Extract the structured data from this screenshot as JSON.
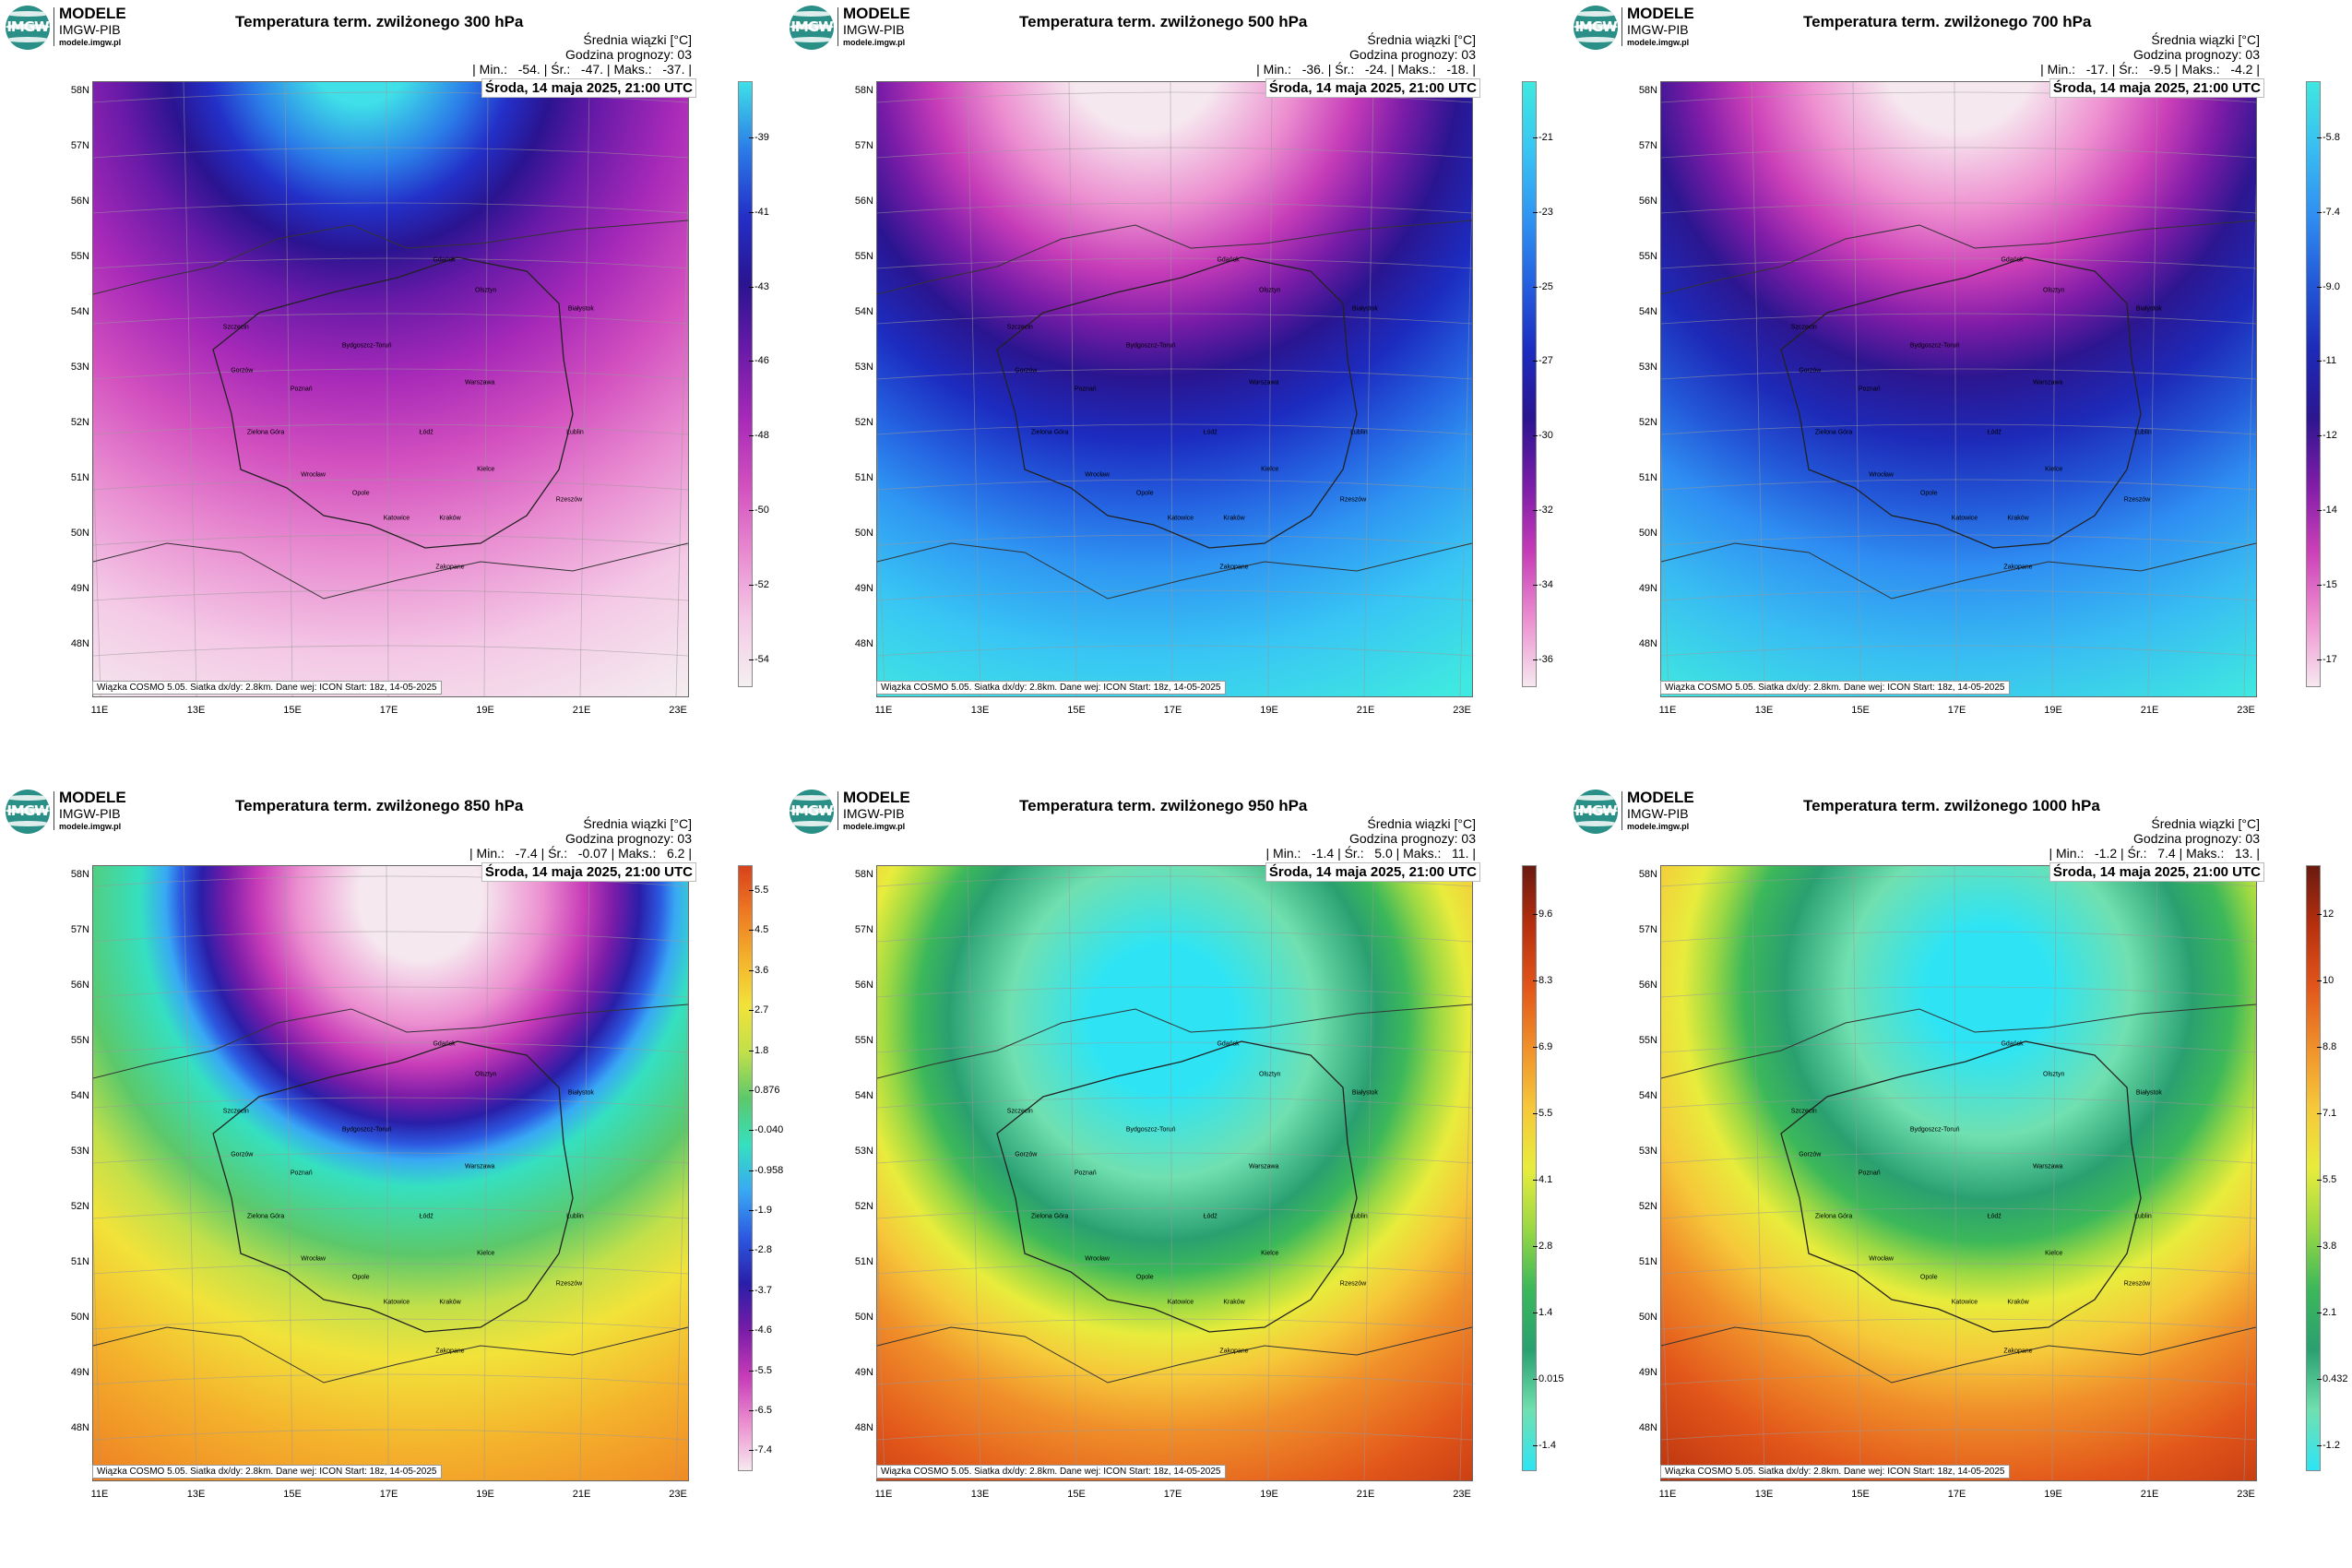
{
  "brand": {
    "name": "MODELE",
    "org": "IMGW-PIB",
    "url": "modele.imgw.pl",
    "logo_text": "IMGW"
  },
  "common": {
    "subtitle": "Średnia wiązki [°C]",
    "forecast_hour": "Godzina prognozy: 03",
    "valid": "Środa, 14 maja 2025, 21:00 UTC",
    "footnote": "Wiązka COSMO 5.05. Siatka dx/dy: 2.8km. Dane wej: ICON Start: 18z, 14-05-2025",
    "lat_labels": [
      "58N",
      "57N",
      "56N",
      "55N",
      "54N",
      "53N",
      "52N",
      "51N",
      "50N",
      "49N",
      "48N"
    ],
    "lon_labels": [
      "11E",
      "13E",
      "15E",
      "17E",
      "19E",
      "21E",
      "23E"
    ],
    "cities": [
      "Gdańsk",
      "Olsztyn",
      "Szczecin",
      "Bydgoszcz-Toruń",
      "Białystok",
      "Gorzów",
      "Poznań",
      "Warszawa",
      "Zielona Góra",
      "Łódź",
      "Lublin",
      "Wrocław",
      "Kielce",
      "Opole",
      "Katowice",
      "Kraków",
      "Rzeszów",
      "Zakopane"
    ]
  },
  "panels": [
    {
      "title": "Temperatura term. zwilżonego 300 hPa",
      "minmax": "| Min.:   -54. | Śr.:   -47. | Maks.:   -37. |",
      "scale": [
        "-39",
        "-41",
        "-43",
        "-46",
        "-48",
        "-50",
        "-52",
        "-54"
      ],
      "colors": [
        "#3fe0e8",
        "#2b7ce8",
        "#2330c8",
        "#2a1490",
        "#6a1aa8",
        "#a629b8",
        "#d24fbf",
        "#e88ad0",
        "#f4c9e6",
        "#f4f0f0"
      ]
    },
    {
      "title": "Temperatura term. zwilżonego 500 hPa",
      "minmax": "| Min.:   -36. | Śr.:   -24. | Maks.:   -18. |",
      "scale": [
        "-21",
        "-23",
        "-25",
        "-27",
        "-30",
        "-32",
        "-34",
        "-36"
      ],
      "colors": [
        "#3fe8e0",
        "#38c6f4",
        "#2f95f2",
        "#2460e0",
        "#1c2cc0",
        "#2a1590",
        "#7a1ca8",
        "#c63cb8",
        "#ec8fd0",
        "#f6e8ef"
      ]
    },
    {
      "title": "Temperatura term. zwilżonego 700 hPa",
      "minmax": "| Min.:   -17. | Śr.:   -9.5 | Maks.:   -4.2 |",
      "scale": [
        "-5.8",
        "-7.4",
        "-9.0",
        "-11",
        "-12",
        "-14",
        "-15",
        "-17"
      ],
      "colors": [
        "#3fe8e0",
        "#38bdf2",
        "#2f8ef2",
        "#2358d8",
        "#1d2ab8",
        "#2c1690",
        "#801ca8",
        "#cc40b8",
        "#ee90d0",
        "#f6e8ef"
      ]
    },
    {
      "title": "Temperatura term. zwilżonego 850 hPa",
      "minmax": "| Min.:   -7.4 | Śr.:   -0.07 | Maks.:   6.2 |",
      "scale": [
        "5.5",
        "4.5",
        "3.6",
        "2.7",
        "1.8",
        "0.876",
        "-0.040",
        "-0.958",
        "-1.9",
        "-2.8",
        "-3.7",
        "-4.6",
        "-5.5",
        "-6.5",
        "-7.4"
      ],
      "colors": [
        "#d8421c",
        "#ee7a22",
        "#f4b22c",
        "#f2e23a",
        "#c2e04a",
        "#5cc86a",
        "#35e0c0",
        "#38a8f4",
        "#2c58e0",
        "#2a1ea8",
        "#7a1ca8",
        "#c83cb8",
        "#ec90d0",
        "#f6e8ef"
      ]
    },
    {
      "title": "Temperatura term. zwilżonego 950 hPa",
      "minmax": "| Min.:   -1.4 | Śr.:   5.0 | Maks.:   11. |",
      "scale": [
        "9.6",
        "8.3",
        "6.9",
        "5.5",
        "4.1",
        "2.8",
        "1.4",
        "0.015",
        "-1.4"
      ],
      "colors": [
        "#6a1a10",
        "#b8300e",
        "#e2561a",
        "#f0902a",
        "#f6c83a",
        "#e8ec3c",
        "#9ad844",
        "#3cb85a",
        "#2aa070",
        "#70e0b0",
        "#2ee4f4"
      ]
    },
    {
      "title": "Temperatura term. zwilżonego 1000 hPa",
      "minmax": "| Min.:   -1.2 | Śr.:   7.4 | Maks.:   13. |",
      "scale": [
        "12",
        "10",
        "8.8",
        "7.1",
        "5.5",
        "3.8",
        "2.1",
        "0.432",
        "-1.2"
      ],
      "colors": [
        "#6a1a10",
        "#b8300e",
        "#e2561a",
        "#f0902a",
        "#f6c83a",
        "#e8ec3c",
        "#9ad844",
        "#3cb85a",
        "#2aa070",
        "#70e0b0",
        "#2ee4f4"
      ]
    }
  ]
}
